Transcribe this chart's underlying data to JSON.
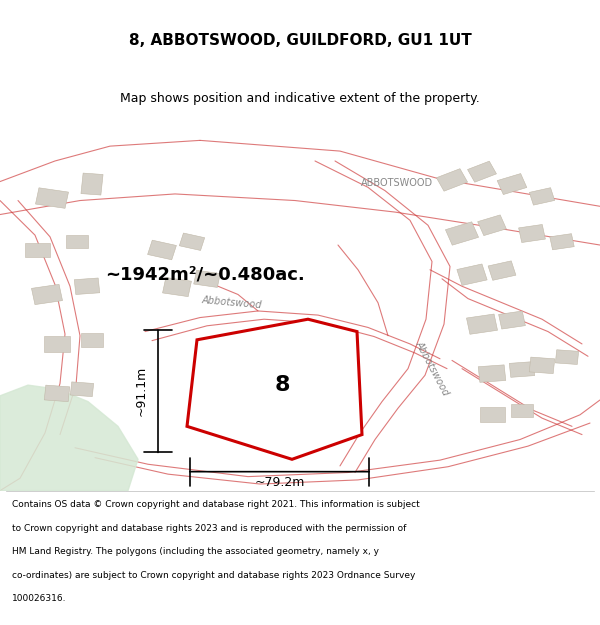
{
  "title": "8, ABBOTSWOOD, GUILDFORD, GU1 1UT",
  "subtitle": "Map shows position and indicative extent of the property.",
  "footer_lines": [
    "Contains OS data © Crown copyright and database right 2021. This information is subject",
    "to Crown copyright and database rights 2023 and is reproduced with the permission of",
    "HM Land Registry. The polygons (including the associated geometry, namely x, y",
    "co-ordinates) are subject to Crown copyright and database rights 2023 Ordnance Survey",
    "100026316."
  ],
  "area_label": "~1942m²/~0.480ac.",
  "label_8": "8",
  "dim_width": "~79.2m",
  "dim_height": "~91.1m",
  "road_label_1": "Abbotswood",
  "road_label_2": "Abbotswood",
  "road_label_top": "ABBOTSWOOD",
  "map_bg": "#f7f4ef",
  "plot_fill": "#ffffff",
  "plot_stroke": "#cc0000",
  "road_color": "#cc3333",
  "building_color": "#d4d0c8",
  "building_edge": "#c0b8a8",
  "green_color": "#d5e8d4",
  "title_fontsize": 11,
  "subtitle_fontsize": 9,
  "footer_fontsize": 6.5
}
